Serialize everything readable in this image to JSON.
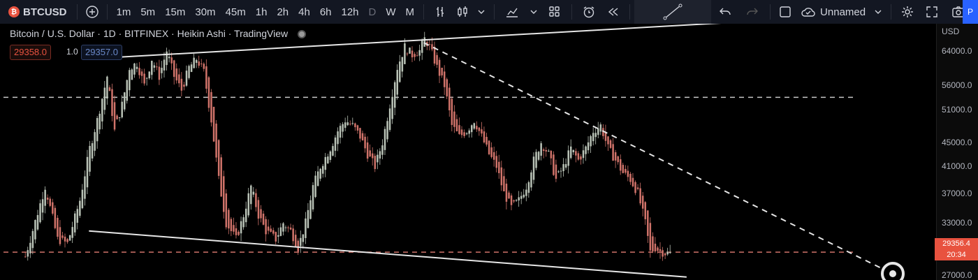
{
  "toolbar": {
    "symbol": "BTCUSD",
    "symbol_badge": "₿",
    "intervals": [
      "1m",
      "5m",
      "15m",
      "30m",
      "45m",
      "1h",
      "2h",
      "4h",
      "6h",
      "12h",
      "D",
      "W",
      "M"
    ],
    "layout_name": "Unnamed",
    "publish_label": "P"
  },
  "legend": {
    "title": "Bitcoin / U.S. Dollar · 1D · BITFINEX · Heikin Ashi · TradingView",
    "bid": "29358.0",
    "qty": "1.0",
    "ask": "29357.0"
  },
  "chart_data": {
    "type": "candlestick",
    "title": "Bitcoin / U.S. Dollar · 1D · BITFINEX · Heikin Ashi · TradingView",
    "currency_label": "USD",
    "y_scale": "log",
    "ylim": [
      26500,
      71000
    ],
    "y_ticks": [
      64000,
      56000,
      51000,
      45000,
      41000,
      37000,
      33000,
      27000
    ],
    "y_tick_labels": [
      "64000.0",
      "56000.0",
      "51000.0",
      "45000.0",
      "41000.0",
      "37000.0",
      "33000.0",
      "27000.0"
    ],
    "current_price": "29356.4",
    "current_price_sub": "20:34",
    "candle_colors": {
      "up": "#b9c2b6",
      "down": "#d0736a"
    },
    "close_path": [
      [
        0,
        29000
      ],
      [
        8,
        38000
      ],
      [
        13,
        31000
      ],
      [
        17,
        30500
      ],
      [
        22,
        36000
      ],
      [
        26,
        44000
      ],
      [
        29,
        49000
      ],
      [
        33,
        58000
      ],
      [
        36,
        47000
      ],
      [
        39,
        52000
      ],
      [
        42,
        60000
      ],
      [
        45,
        61000
      ],
      [
        48,
        56000
      ],
      [
        51,
        62000
      ],
      [
        54,
        58000
      ],
      [
        57,
        64000
      ],
      [
        60,
        58000
      ],
      [
        63,
        55000
      ],
      [
        66,
        60000
      ],
      [
        69,
        62000
      ],
      [
        72,
        59000
      ],
      [
        75,
        49000
      ],
      [
        78,
        39000
      ],
      [
        81,
        33000
      ],
      [
        85,
        31000
      ],
      [
        88,
        34000
      ],
      [
        91,
        38000
      ],
      [
        94,
        34000
      ],
      [
        97,
        32000
      ],
      [
        101,
        31000
      ],
      [
        104,
        33000
      ],
      [
        107,
        32000
      ],
      [
        110,
        30000
      ],
      [
        113,
        33000
      ],
      [
        116,
        38000
      ],
      [
        119,
        41000
      ],
      [
        123,
        44000
      ],
      [
        126,
        47000
      ],
      [
        129,
        49000
      ],
      [
        132,
        48000
      ],
      [
        135,
        46000
      ],
      [
        138,
        43000
      ],
      [
        141,
        41000
      ],
      [
        144,
        45000
      ],
      [
        147,
        52000
      ],
      [
        150,
        60000
      ],
      [
        153,
        65000
      ],
      [
        156,
        63000
      ],
      [
        159,
        64000
      ],
      [
        161,
        67000
      ],
      [
        163,
        65000
      ],
      [
        166,
        60000
      ],
      [
        169,
        56000
      ],
      [
        172,
        48000
      ],
      [
        175,
        46000
      ],
      [
        178,
        47000
      ],
      [
        181,
        49000
      ],
      [
        184,
        46000
      ],
      [
        187,
        43000
      ],
      [
        190,
        41000
      ],
      [
        193,
        37000
      ],
      [
        196,
        35000
      ],
      [
        199,
        36000
      ],
      [
        202,
        38000
      ],
      [
        205,
        42000
      ],
      [
        208,
        45000
      ],
      [
        211,
        43000
      ],
      [
        214,
        39000
      ],
      [
        217,
        41000
      ],
      [
        220,
        44000
      ],
      [
        223,
        42000
      ],
      [
        226,
        44000
      ],
      [
        229,
        47000
      ],
      [
        232,
        48000
      ],
      [
        235,
        44000
      ],
      [
        238,
        42000
      ],
      [
        241,
        40000
      ],
      [
        244,
        39000
      ],
      [
        247,
        37000
      ],
      [
        250,
        33000
      ],
      [
        252,
        29500
      ],
      [
        254,
        30000
      ],
      [
        256,
        29600
      ],
      [
        258,
        29400
      ],
      [
        260,
        29356
      ]
    ],
    "horizontal_levels": [
      {
        "price": 53500,
        "style": "dashed",
        "color": "#c8c8c8"
      },
      {
        "price": 29500,
        "style": "dashed",
        "color": "#d0736a"
      }
    ],
    "trendlines": [
      {
        "from": [
          25,
          62000
        ],
        "to": [
          289,
          71500
        ],
        "style": "solid"
      },
      {
        "from": [
          26,
          32000
        ],
        "to": [
          267,
          26800
        ],
        "style": "solid"
      },
      {
        "from": [
          161,
          66000
        ],
        "to": [
          345,
          27800
        ],
        "style": "dashed"
      }
    ]
  }
}
